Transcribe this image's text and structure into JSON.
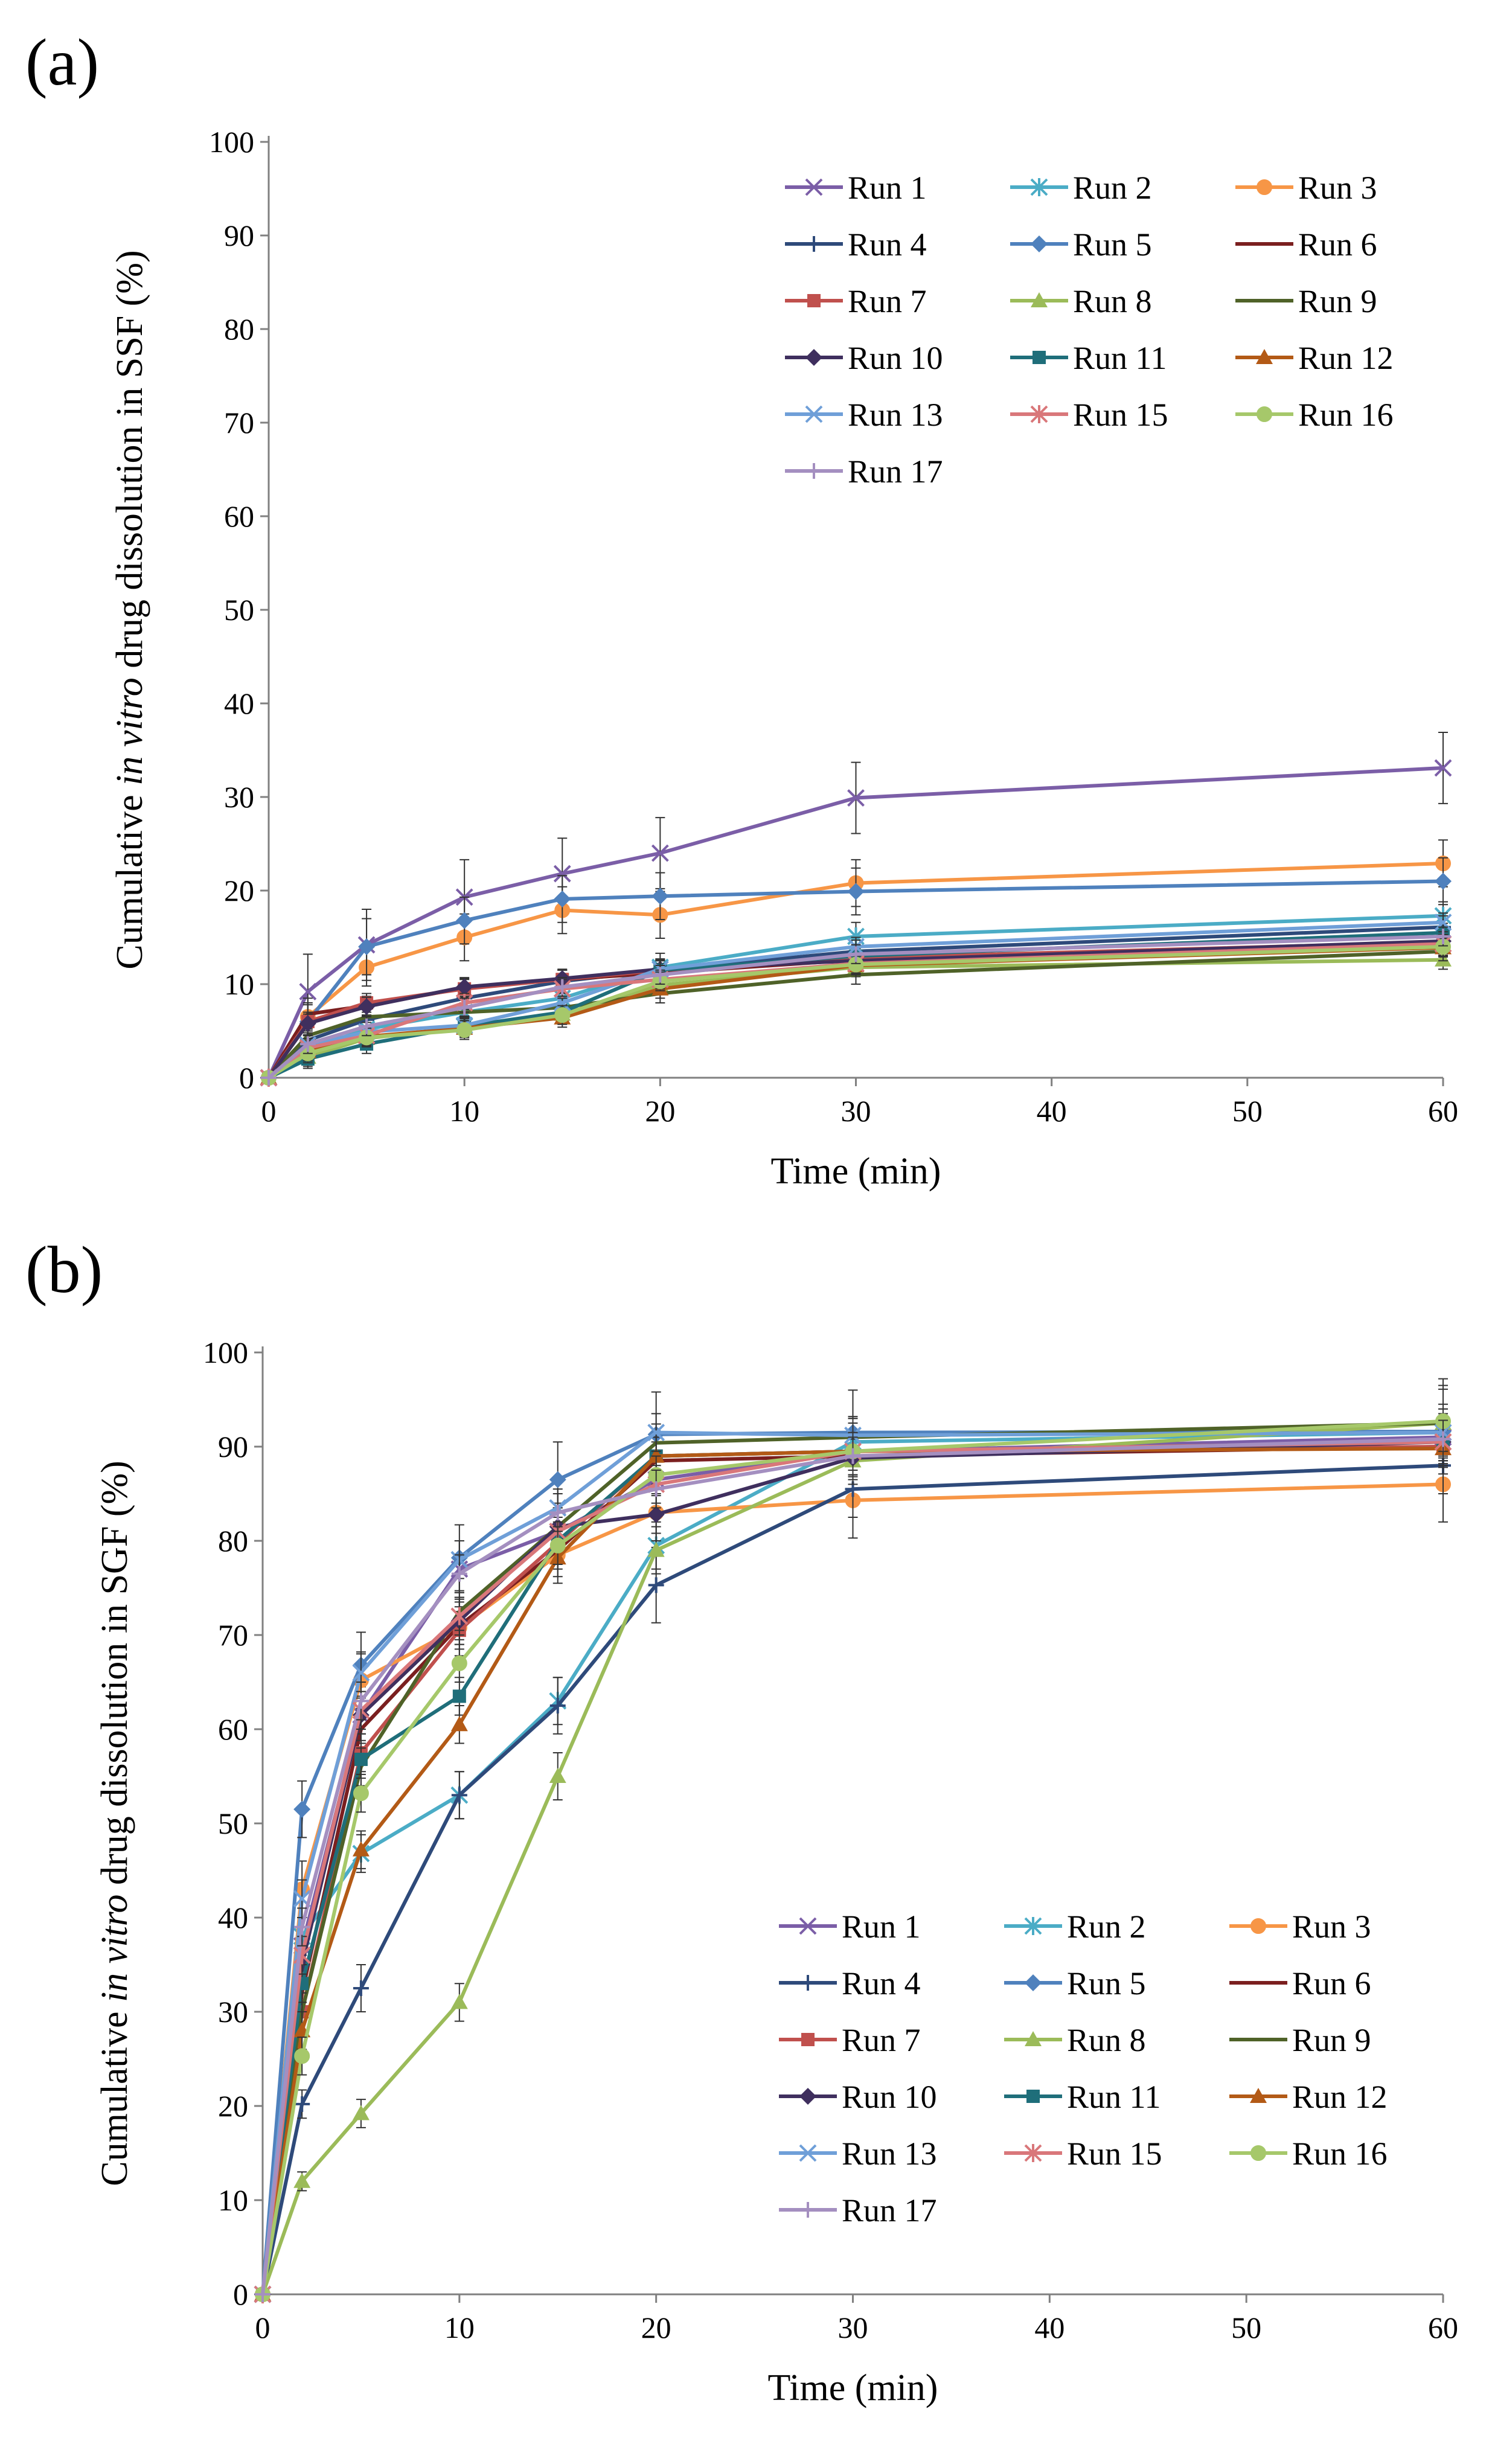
{
  "chart_data": [
    {
      "type": "line",
      "panel_label": "(a)",
      "ylabel_parts": [
        "Cumulative ",
        "in vitro",
        " drug dissolution in SSF (%)"
      ],
      "xlabel": "Time (min)",
      "x": [
        0,
        2,
        5,
        10,
        15,
        20,
        30,
        60
      ],
      "xlim": [
        0,
        60
      ],
      "ylim": [
        0,
        100
      ],
      "xticks": [
        0,
        10,
        20,
        30,
        40,
        50,
        60
      ],
      "yticks": [
        0,
        10,
        20,
        30,
        40,
        50,
        60,
        70,
        80,
        90,
        100
      ],
      "legend_position": "top-right",
      "series": [
        {
          "name": "Run 1",
          "color": "#7B5EA7",
          "marker": "x",
          "values": [
            0,
            9.2,
            14.2,
            19.3,
            21.8,
            24.0,
            29.9,
            33.1
          ],
          "errors": [
            2.0,
            4.0,
            3.8,
            4.0,
            3.8,
            3.8,
            3.8,
            3.8
          ]
        },
        {
          "name": "Run 2",
          "color": "#4BACC6",
          "marker": "asterisk",
          "values": [
            0,
            3.0,
            5.2,
            7.0,
            8.5,
            11.8,
            15.1,
            17.3
          ],
          "errors": [
            1.5,
            1.5,
            1.5,
            1.5,
            1.5,
            1.5,
            1.5,
            1.5
          ]
        },
        {
          "name": "Run 3",
          "color": "#F79646",
          "marker": "circle",
          "values": [
            0,
            6.5,
            11.8,
            15.0,
            17.9,
            17.4,
            20.8,
            22.9
          ],
          "errors": [
            1.5,
            2.0,
            2.0,
            2.5,
            2.5,
            2.5,
            2.5,
            2.5
          ]
        },
        {
          "name": "Run 4",
          "color": "#2E4A7A",
          "marker": "plus",
          "values": [
            0,
            4.0,
            6.2,
            8.5,
            10.3,
            11.5,
            13.5,
            16.1
          ],
          "errors": [
            1.2,
            1.2,
            1.2,
            1.2,
            1.2,
            1.2,
            1.2,
            1.2
          ]
        },
        {
          "name": "Run 5",
          "color": "#4F81BD",
          "marker": "diamond",
          "values": [
            0,
            6.0,
            14.0,
            16.8,
            19.1,
            19.4,
            19.9,
            21.0
          ],
          "errors": [
            1.5,
            2.0,
            3.0,
            2.5,
            2.5,
            2.5,
            2.5,
            2.5
          ]
        },
        {
          "name": "Run 6",
          "color": "#7B1F1F",
          "marker": "none",
          "values": [
            0,
            6.8,
            7.7,
            9.6,
            10.5,
            11.2,
            12.6,
            14.1
          ],
          "errors": [
            1.0,
            1.0,
            1.0,
            1.0,
            1.0,
            1.0,
            1.0,
            1.0
          ]
        },
        {
          "name": "Run 7",
          "color": "#C0504D",
          "marker": "square",
          "values": [
            0,
            6.0,
            8.0,
            9.5,
            10.5,
            11.5,
            12.8,
            14.5
          ],
          "errors": [
            1.0,
            1.0,
            1.0,
            1.0,
            1.0,
            1.0,
            1.0,
            1.0
          ]
        },
        {
          "name": "Run 8",
          "color": "#9BBB59",
          "marker": "triangle",
          "values": [
            0,
            2.2,
            4.2,
            5.4,
            6.8,
            9.9,
            11.8,
            12.6
          ],
          "errors": [
            1.0,
            1.0,
            1.0,
            1.0,
            1.0,
            1.0,
            1.0,
            1.0
          ]
        },
        {
          "name": "Run 9",
          "color": "#4F6228",
          "marker": "none",
          "values": [
            0,
            4.5,
            6.5,
            7.0,
            7.5,
            9.0,
            11.0,
            13.5
          ],
          "errors": [
            1.0,
            1.0,
            1.0,
            1.0,
            1.0,
            1.0,
            1.0,
            1.0
          ]
        },
        {
          "name": "Run 10",
          "color": "#3F2F5E",
          "marker": "diamond",
          "values": [
            0,
            5.8,
            7.6,
            9.7,
            10.6,
            11.6,
            12.5,
            14.6
          ],
          "errors": [
            1.0,
            1.0,
            1.0,
            1.0,
            1.0,
            1.0,
            1.0,
            1.0
          ]
        },
        {
          "name": "Run 11",
          "color": "#1F6E7A",
          "marker": "square",
          "values": [
            0,
            2.0,
            3.6,
            5.5,
            7.0,
            11.5,
            13.0,
            15.5
          ],
          "errors": [
            1.0,
            1.0,
            1.0,
            1.0,
            1.0,
            1.0,
            1.0,
            1.0
          ]
        },
        {
          "name": "Run 12",
          "color": "#B35A16",
          "marker": "triangle",
          "values": [
            0,
            2.8,
            4.4,
            5.3,
            6.4,
            9.5,
            12.0,
            13.9
          ],
          "errors": [
            1.0,
            1.0,
            1.0,
            1.0,
            1.0,
            1.0,
            1.0,
            1.0
          ]
        },
        {
          "name": "Run 13",
          "color": "#6F9FD8",
          "marker": "x",
          "values": [
            0,
            3.5,
            4.9,
            5.6,
            8.0,
            11.6,
            14.0,
            16.6
          ],
          "errors": [
            1.0,
            1.0,
            1.0,
            1.0,
            1.0,
            1.0,
            1.0,
            1.0
          ]
        },
        {
          "name": "Run 15",
          "color": "#D9777A",
          "marker": "asterisk",
          "values": [
            0,
            3.2,
            4.5,
            8.0,
            9.5,
            10.5,
            12.2,
            14.3
          ],
          "errors": [
            1.0,
            1.0,
            1.0,
            1.0,
            1.0,
            1.0,
            1.0,
            1.0
          ]
        },
        {
          "name": "Run 16",
          "color": "#A6C86A",
          "marker": "circle",
          "values": [
            0,
            2.6,
            4.3,
            5.1,
            6.7,
            10.3,
            12.1,
            14.0
          ],
          "errors": [
            1.0,
            1.0,
            1.0,
            1.0,
            1.0,
            1.0,
            1.0,
            1.0
          ]
        },
        {
          "name": "Run 17",
          "color": "#A48FC0",
          "marker": "plus",
          "values": [
            0,
            3.6,
            5.5,
            7.5,
            9.7,
            11.0,
            13.2,
            15.1
          ],
          "errors": [
            1.0,
            1.0,
            1.0,
            1.0,
            1.0,
            1.0,
            1.0,
            1.0
          ]
        }
      ]
    },
    {
      "type": "line",
      "panel_label": "(b)",
      "ylabel_parts": [
        "Cumulative ",
        "in vitro",
        " drug dissolution in SGF (%)"
      ],
      "xlabel": "Time (min)",
      "x": [
        0,
        2,
        5,
        10,
        15,
        20,
        30,
        60
      ],
      "xlim": [
        0,
        60
      ],
      "ylim": [
        0,
        100
      ],
      "xticks": [
        0,
        10,
        20,
        30,
        40,
        50,
        60
      ],
      "yticks": [
        0,
        10,
        20,
        30,
        40,
        50,
        60,
        70,
        80,
        90,
        100
      ],
      "legend_position": "bottom-right",
      "series": [
        {
          "name": "Run 1",
          "color": "#7B5EA7",
          "marker": "x",
          "values": [
            0,
            37.0,
            61.5,
            77.0,
            81.0,
            86.5,
            89.5,
            91.0
          ],
          "errors": [
            2.5,
            3.0,
            3.0,
            3.0,
            3.0,
            3.0,
            3.0,
            3.0
          ]
        },
        {
          "name": "Run 2",
          "color": "#4BACC6",
          "marker": "asterisk",
          "values": [
            0,
            38.0,
            46.8,
            53.0,
            63.0,
            79.5,
            90.5,
            91.5
          ],
          "errors": [
            2.0,
            2.0,
            2.0,
            2.5,
            2.5,
            2.5,
            2.5,
            2.5
          ]
        },
        {
          "name": "Run 3",
          "color": "#F79646",
          "marker": "circle",
          "values": [
            0,
            43.0,
            65.2,
            70.8,
            78.5,
            83.0,
            84.3,
            86.0
          ],
          "errors": [
            2.0,
            3.0,
            3.0,
            3.0,
            3.0,
            3.0,
            4.0,
            4.0
          ]
        },
        {
          "name": "Run 4",
          "color": "#2E4A7A",
          "marker": "plus",
          "values": [
            0,
            20.2,
            32.5,
            53.0,
            62.5,
            75.3,
            85.5,
            88.0
          ],
          "errors": [
            1.5,
            1.5,
            2.5,
            2.5,
            3.0,
            4.0,
            3.0,
            3.0
          ]
        },
        {
          "name": "Run 5",
          "color": "#4F81BD",
          "marker": "diamond",
          "values": [
            0,
            51.5,
            66.8,
            78.2,
            86.5,
            91.3,
            91.5,
            91.6
          ],
          "errors": [
            2.5,
            3.0,
            3.5,
            3.5,
            4.0,
            4.5,
            4.5,
            4.5
          ]
        },
        {
          "name": "Run 6",
          "color": "#7B1F1F",
          "marker": "none",
          "values": [
            0,
            32.0,
            60.0,
            71.0,
            79.0,
            88.5,
            89.0,
            90.0
          ],
          "errors": [
            2.0,
            2.0,
            2.0,
            2.0,
            2.0,
            2.0,
            2.0,
            2.0
          ]
        },
        {
          "name": "Run 7",
          "color": "#C0504D",
          "marker": "square",
          "values": [
            0,
            30.0,
            57.5,
            70.5,
            79.8,
            89.0,
            89.5,
            90.0
          ],
          "errors": [
            2.0,
            2.0,
            2.0,
            2.0,
            2.0,
            2.0,
            2.0,
            2.0
          ]
        },
        {
          "name": "Run 8",
          "color": "#9BBB59",
          "marker": "triangle",
          "values": [
            0,
            12.0,
            19.2,
            31.0,
            55.0,
            79.0,
            88.5,
            92.5
          ],
          "errors": [
            1.0,
            1.0,
            1.5,
            2.0,
            2.5,
            2.5,
            2.5,
            4.0
          ]
        },
        {
          "name": "Run 9",
          "color": "#4F6228",
          "marker": "none",
          "values": [
            0,
            30.0,
            56.0,
            72.5,
            81.5,
            90.4,
            91.0,
            92.5
          ],
          "errors": [
            2.0,
            2.0,
            2.0,
            2.0,
            2.0,
            2.0,
            2.0,
            2.0
          ]
        },
        {
          "name": "Run 10",
          "color": "#3F2F5E",
          "marker": "diamond",
          "values": [
            0,
            35.0,
            61.5,
            71.5,
            81.5,
            82.8,
            88.8,
            90.5
          ],
          "errors": [
            2.0,
            2.0,
            2.0,
            2.0,
            2.0,
            2.0,
            2.0,
            2.0
          ]
        },
        {
          "name": "Run 11",
          "color": "#1F6E7A",
          "marker": "square",
          "values": [
            0,
            33.0,
            56.8,
            63.5,
            80.0,
            89.0,
            89.5,
            90.5
          ],
          "errors": [
            2.0,
            2.0,
            2.0,
            2.0,
            2.0,
            2.0,
            2.0,
            2.0
          ]
        },
        {
          "name": "Run 12",
          "color": "#B35A16",
          "marker": "triangle",
          "values": [
            0,
            28.0,
            47.2,
            60.5,
            78.2,
            89.0,
            89.5,
            89.8
          ],
          "errors": [
            2.0,
            2.0,
            2.0,
            2.0,
            2.0,
            2.0,
            2.0,
            2.0
          ]
        },
        {
          "name": "Run 13",
          "color": "#6F9FD8",
          "marker": "x",
          "values": [
            0,
            42.0,
            66.0,
            78.0,
            83.5,
            91.5,
            91.2,
            91.5
          ],
          "errors": [
            2.0,
            2.0,
            2.0,
            2.0,
            2.0,
            2.0,
            2.0,
            2.0
          ]
        },
        {
          "name": "Run 15",
          "color": "#D9777A",
          "marker": "asterisk",
          "values": [
            0,
            36.0,
            62.0,
            72.0,
            81.0,
            86.0,
            89.5,
            90.5
          ],
          "errors": [
            2.0,
            2.0,
            2.0,
            2.0,
            2.0,
            2.0,
            2.0,
            2.0
          ]
        },
        {
          "name": "Run 16",
          "color": "#A6C86A",
          "marker": "circle",
          "values": [
            0,
            25.3,
            53.2,
            67.0,
            79.5,
            87.0,
            89.5,
            92.7
          ],
          "errors": [
            2.0,
            2.0,
            2.0,
            2.0,
            2.0,
            2.0,
            2.0,
            4.5
          ]
        },
        {
          "name": "Run 17",
          "color": "#A48FC0",
          "marker": "plus",
          "values": [
            0,
            39.0,
            63.0,
            76.5,
            83.0,
            85.5,
            89.0,
            90.8
          ],
          "errors": [
            2.0,
            2.0,
            2.0,
            2.0,
            2.0,
            2.0,
            2.0,
            2.0
          ]
        }
      ]
    }
  ]
}
